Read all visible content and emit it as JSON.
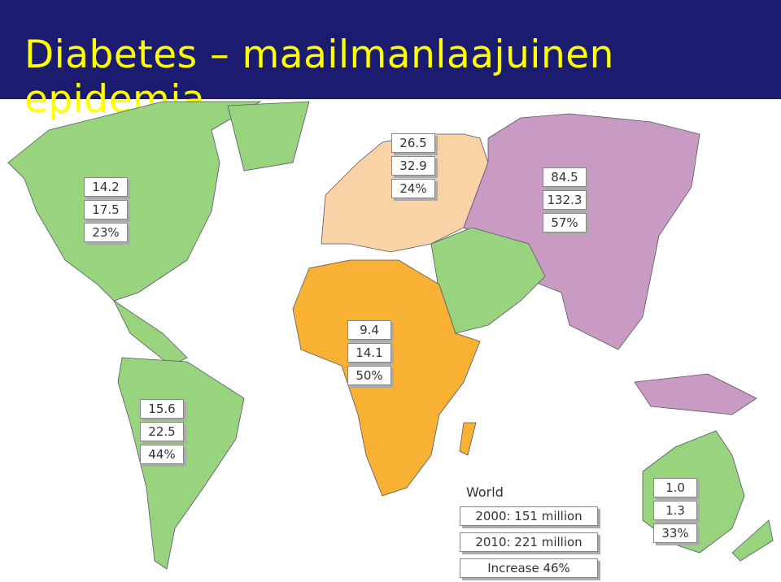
{
  "header": {
    "title": "Diabetes – maailmanlaajuinen epidemia"
  },
  "regions": [
    {
      "labels": [
        "14.2",
        "17.5",
        "23%"
      ]
    },
    {
      "labels": [
        "26.5",
        "32.9",
        "24%"
      ]
    },
    {
      "labels": [
        "84.5",
        "132.3",
        "57%"
      ]
    },
    {
      "labels": [
        "9.4",
        "14.1",
        "50%"
      ]
    },
    {
      "labels": [
        "15.6",
        "22.5",
        "44%"
      ]
    },
    {
      "labels": [
        "1.0",
        "1.3",
        "33%"
      ]
    }
  ],
  "world": {
    "title": "World",
    "lines": [
      "2000: 151 million",
      "2010: 221 million",
      "Increase 46%"
    ]
  }
}
